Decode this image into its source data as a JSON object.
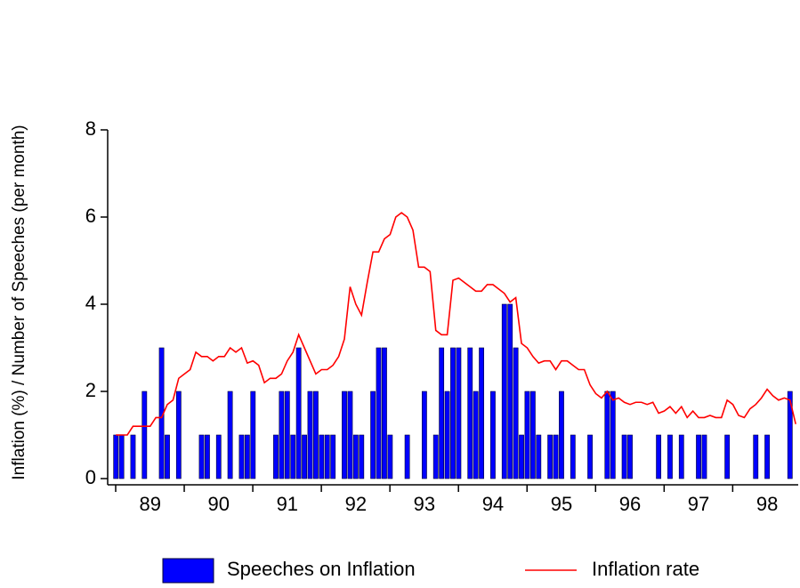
{
  "chart_data": {
    "type": "bar_line",
    "y_axis_label": "Inflation (%) / Number of Speeches (per month)",
    "categories": [
      null,
      null,
      null,
      null,
      null,
      null,
      "89",
      null,
      null,
      null,
      null,
      null,
      null,
      null,
      null,
      null,
      null,
      null,
      "90",
      null,
      null,
      null,
      null,
      null,
      null,
      null,
      null,
      null,
      null,
      null,
      "91",
      null,
      null,
      null,
      null,
      null,
      null,
      null,
      null,
      null,
      null,
      null,
      "92",
      null,
      null,
      null,
      null,
      null,
      null,
      null,
      null,
      null,
      null,
      null,
      "93",
      null,
      null,
      null,
      null,
      null,
      null,
      null,
      null,
      null,
      null,
      null,
      "94",
      null,
      null,
      null,
      null,
      null,
      null,
      null,
      null,
      null,
      null,
      null,
      "95",
      null,
      null,
      null,
      null,
      null,
      null,
      null,
      null,
      null,
      null,
      null,
      "96",
      null,
      null,
      null,
      null,
      null,
      null,
      null,
      null,
      null,
      null,
      null,
      "97",
      null,
      null,
      null,
      null,
      null,
      null,
      null,
      null,
      null,
      null,
      null,
      "98",
      null,
      null,
      null,
      null,
      null
    ],
    "series": [
      {
        "name": "Speeches on Inflation",
        "kind": "bar",
        "color": "#0000ff",
        "values": [
          1,
          1,
          0,
          1,
          0,
          2,
          0,
          0,
          3,
          1,
          0,
          2,
          0,
          0,
          0,
          1,
          1,
          0,
          1,
          0,
          2,
          0,
          1,
          1,
          2,
          0,
          0,
          0,
          1,
          2,
          2,
          1,
          3,
          1,
          2,
          2,
          1,
          1,
          1,
          0,
          2,
          2,
          1,
          1,
          0,
          2,
          3,
          3,
          1,
          0,
          0,
          1,
          0,
          0,
          2,
          0,
          1,
          3,
          2,
          3,
          3,
          0,
          3,
          2,
          3,
          0,
          2,
          0,
          4,
          4,
          3,
          1,
          2,
          2,
          1,
          0,
          1,
          1,
          2,
          0,
          1,
          0,
          0,
          1,
          0,
          0,
          2,
          2,
          0,
          1,
          1,
          0,
          0,
          0,
          0,
          1,
          0,
          1,
          0,
          1,
          0,
          0,
          1,
          1,
          0,
          0,
          0,
          1,
          0,
          0,
          0,
          0,
          1,
          0,
          1,
          0,
          0,
          0,
          2,
          0
        ]
      },
      {
        "name": "Inflation rate",
        "kind": "line",
        "color": "#ff0000",
        "values": [
          1.0,
          1.0,
          1.0,
          1.2,
          1.2,
          1.2,
          1.2,
          1.4,
          1.4,
          1.7,
          1.8,
          2.3,
          2.4,
          2.5,
          2.9,
          2.8,
          2.8,
          2.7,
          2.8,
          2.8,
          3.0,
          2.9,
          3.0,
          2.65,
          2.7,
          2.6,
          2.2,
          2.3,
          2.3,
          2.4,
          2.7,
          2.9,
          3.3,
          3.0,
          2.7,
          2.4,
          2.5,
          2.5,
          2.6,
          2.8,
          3.2,
          4.4,
          4.0,
          3.75,
          4.5,
          5.2,
          5.2,
          5.5,
          5.6,
          6.0,
          6.1,
          6.0,
          5.7,
          4.85,
          4.85,
          4.75,
          3.4,
          3.3,
          3.3,
          4.55,
          4.6,
          4.5,
          4.4,
          4.3,
          4.3,
          4.45,
          4.45,
          4.35,
          4.25,
          4.05,
          4.15,
          3.1,
          3.0,
          2.8,
          2.65,
          2.7,
          2.7,
          2.5,
          2.7,
          2.7,
          2.6,
          2.5,
          2.5,
          2.15,
          1.95,
          1.85,
          2.0,
          1.8,
          1.85,
          1.75,
          1.7,
          1.75,
          1.75,
          1.7,
          1.75,
          1.5,
          1.55,
          1.65,
          1.5,
          1.65,
          1.4,
          1.55,
          1.4,
          1.4,
          1.45,
          1.4,
          1.4,
          1.8,
          1.7,
          1.45,
          1.4,
          1.6,
          1.7,
          1.85,
          2.05,
          1.9,
          1.8,
          1.85,
          1.8,
          1.25
        ]
      }
    ],
    "ylim": [
      0,
      8
    ],
    "yticks": [
      0,
      2,
      4,
      6,
      8
    ],
    "grid": false,
    "legend": "bottom"
  }
}
